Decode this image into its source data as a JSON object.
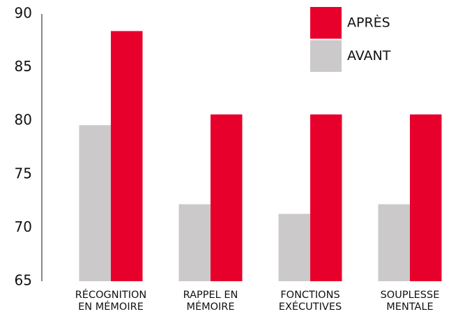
{
  "chart_data": {
    "type": "bar",
    "categories": [
      [
        "RÉCOGNITION",
        "EN MÉMOIRE"
      ],
      [
        "RAPPEL EN",
        "MÉMOIRE"
      ],
      [
        "FONCTIONS",
        "EXÉCUTIVES"
      ],
      [
        "SOUPLESSE",
        "MENTALE"
      ]
    ],
    "series": [
      {
        "name": "AVANT",
        "color": "#cbc9ca",
        "values": [
          79.6,
          72.2,
          71.3,
          72.2
        ]
      },
      {
        "name": "APRÈS",
        "color": "#e8002d",
        "values": [
          88.4,
          80.6,
          80.6,
          80.6
        ]
      }
    ],
    "ylim": [
      65,
      90
    ],
    "yticks": [
      65,
      70,
      75,
      80,
      85,
      90
    ],
    "grid": false,
    "legend": "top-right"
  }
}
